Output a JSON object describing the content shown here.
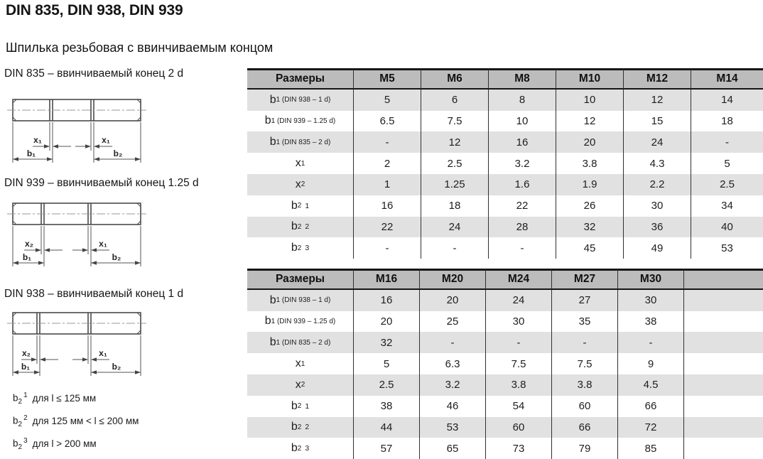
{
  "page": {
    "title": "DIN 835, DIN 938, DIN 939",
    "subtitle": "Шпилька резьбовая с ввинчиваемым концом"
  },
  "colors": {
    "header_bg": "#bcbcbc",
    "stripe_bg": "#e1e1e1",
    "border_dark": "#161616",
    "drawing_line": "#4a4a4a"
  },
  "diagrams": [
    {
      "label": "DIN 835 – ввинчиваемый конец 2 d",
      "dim_left": "x₁",
      "dim_right": "x₁",
      "dim_b1": "b₁",
      "dim_b2": "b₂"
    },
    {
      "label": "DIN 939 – ввинчиваемый конец 1.25 d",
      "dim_left": "x₂",
      "dim_right": "x₁",
      "dim_b1": "b₁",
      "dim_b2": "b₂"
    },
    {
      "label": "DIN 938 – ввинчиваемый конец 1 d",
      "dim_left": "x₂",
      "dim_right": "x₁",
      "dim_b1": "b₁",
      "dim_b2": "b₂"
    }
  ],
  "footnotes": [
    {
      "base": "b",
      "sub": "2",
      "sup": "1",
      "text": "для l ≤ 125 мм"
    },
    {
      "base": "b",
      "sub": "2",
      "sup": "2",
      "text": "для 125 мм < l ≤ 200 мм"
    },
    {
      "base": "b",
      "sub": "2",
      "sup": "3",
      "text": "для l > 200 мм"
    }
  ],
  "tables": [
    {
      "header": [
        "Размеры",
        "M5",
        "M6",
        "M8",
        "M10",
        "M12",
        "M14"
      ],
      "rows": [
        {
          "label": {
            "base": "b",
            "sub": "1 (DIN 938 – 1 d)"
          },
          "values": [
            "5",
            "6",
            "8",
            "10",
            "12",
            "14"
          ]
        },
        {
          "label": {
            "base": "b",
            "sub": "1 (DIN 939 – 1.25 d)"
          },
          "values": [
            "6.5",
            "7.5",
            "10",
            "12",
            "15",
            "18"
          ]
        },
        {
          "label": {
            "base": "b",
            "sub": "1 (DIN 835 – 2 d)"
          },
          "values": [
            "-",
            "12",
            "16",
            "20",
            "24",
            "-"
          ]
        },
        {
          "label": {
            "base": "x",
            "sub": "1"
          },
          "values": [
            "2",
            "2.5",
            "3.2",
            "3.8",
            "4.3",
            "5"
          ]
        },
        {
          "label": {
            "base": "x",
            "sub": "2"
          },
          "values": [
            "1",
            "1.25",
            "1.6",
            "1.9",
            "2.2",
            "2.5"
          ]
        },
        {
          "label": {
            "base": "b",
            "sub": "2",
            "sup": "1"
          },
          "values": [
            "16",
            "18",
            "22",
            "26",
            "30",
            "34"
          ]
        },
        {
          "label": {
            "base": "b",
            "sub": "2",
            "sup": "2"
          },
          "values": [
            "22",
            "24",
            "28",
            "32",
            "36",
            "40"
          ]
        },
        {
          "label": {
            "base": "b",
            "sub": "2",
            "sup": "3"
          },
          "values": [
            "-",
            "-",
            "-",
            "45",
            "49",
            "53"
          ]
        }
      ]
    },
    {
      "header": [
        "Размеры",
        "M16",
        "M20",
        "M24",
        "M27",
        "M30",
        ""
      ],
      "rows": [
        {
          "label": {
            "base": "b",
            "sub": "1 (DIN 938 – 1 d)"
          },
          "values": [
            "16",
            "20",
            "24",
            "27",
            "30",
            ""
          ]
        },
        {
          "label": {
            "base": "b",
            "sub": "1 (DIN 939 – 1.25 d)"
          },
          "values": [
            "20",
            "25",
            "30",
            "35",
            "38",
            ""
          ]
        },
        {
          "label": {
            "base": "b",
            "sub": "1 (DIN 835 – 2 d)"
          },
          "values": [
            "32",
            "-",
            "-",
            "-",
            "-",
            ""
          ]
        },
        {
          "label": {
            "base": "x",
            "sub": "1"
          },
          "values": [
            "5",
            "6.3",
            "7.5",
            "7.5",
            "9",
            ""
          ]
        },
        {
          "label": {
            "base": "x",
            "sub": "2"
          },
          "values": [
            "2.5",
            "3.2",
            "3.8",
            "3.8",
            "4.5",
            ""
          ]
        },
        {
          "label": {
            "base": "b",
            "sub": "2",
            "sup": "1"
          },
          "values": [
            "38",
            "46",
            "54",
            "60",
            "66",
            ""
          ]
        },
        {
          "label": {
            "base": "b",
            "sub": "2",
            "sup": "2"
          },
          "values": [
            "44",
            "53",
            "60",
            "66",
            "72",
            ""
          ]
        },
        {
          "label": {
            "base": "b",
            "sub": "2",
            "sup": "3"
          },
          "values": [
            "57",
            "65",
            "73",
            "79",
            "85",
            ""
          ]
        }
      ]
    }
  ]
}
